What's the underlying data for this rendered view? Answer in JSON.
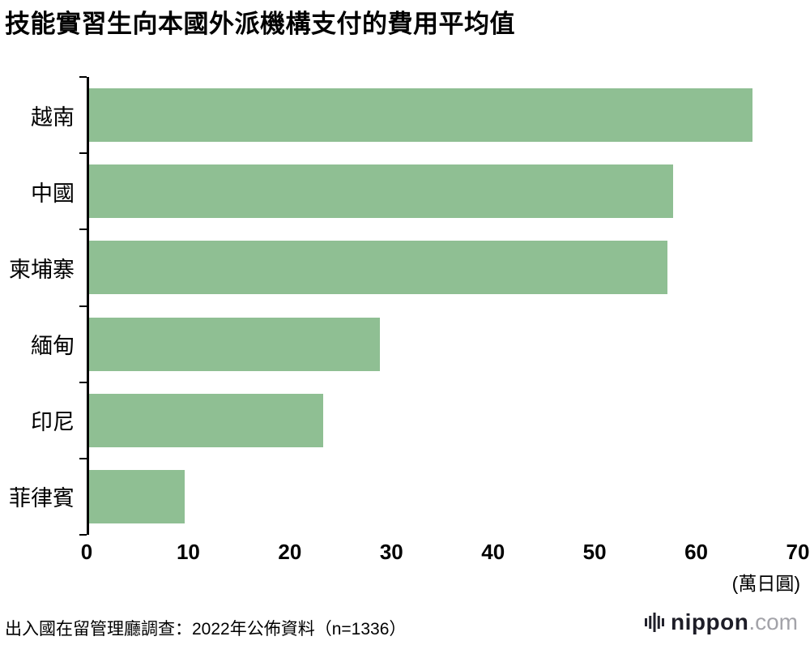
{
  "chart_data": {
    "type": "bar",
    "orientation": "horizontal",
    "title": "技能實習生向本國外派機構支付的費用平均值",
    "categories": [
      "越南",
      "中國",
      "柬埔寨",
      "緬甸",
      "印尼",
      "菲律賓"
    ],
    "values": [
      65.5,
      57.7,
      57.1,
      28.7,
      23.1,
      9.4
    ],
    "xlim": [
      0,
      70
    ],
    "x_ticks": [
      0,
      10,
      20,
      30,
      40,
      50,
      60,
      70
    ],
    "unit_label": "(萬日圓)",
    "bar_color": "#8fbf93",
    "grid": false,
    "legend": "none"
  },
  "source_note": "出入國在留管理廳調查：2022年公佈資料（n=1336）",
  "logo": {
    "name": "nippon",
    "suffix": ".com"
  }
}
